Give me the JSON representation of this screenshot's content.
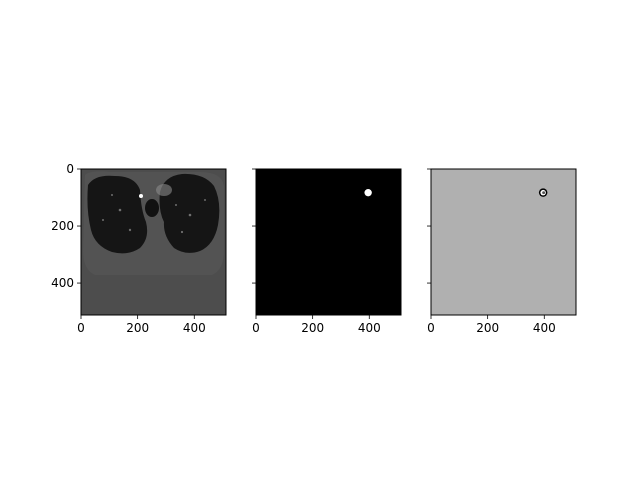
{
  "figure": {
    "background": "#ffffff",
    "panels": [
      {
        "name": "ct-slice",
        "image_kind": "grayscale chest CT slice (lungs)",
        "x_ticks": [
          0,
          200,
          400
        ],
        "y_ticks": [
          0,
          200,
          400
        ],
        "x_tick_labels": [
          "0",
          "200",
          "400"
        ],
        "y_tick_labels": [
          "0",
          "200",
          "400"
        ],
        "show_y_tick_labels": true,
        "extent": [
          0,
          512
        ]
      },
      {
        "name": "nodule-mask",
        "image_kind": "binary mask on black background with one white blob",
        "blob_center": [
          396,
          83
        ],
        "blob_radius": 13,
        "x_ticks": [
          0,
          200,
          400
        ],
        "y_ticks": [
          0,
          200,
          400
        ],
        "x_tick_labels": [
          "0",
          "200",
          "400"
        ],
        "y_tick_labels": [],
        "show_y_tick_labels": false,
        "extent": [
          0,
          512
        ]
      },
      {
        "name": "difference-map",
        "image_kind": "gray field with small ring marker",
        "blob_center": [
          396,
          83
        ],
        "blob_radius": 13,
        "x_ticks": [
          0,
          200,
          400
        ],
        "y_ticks": [
          0,
          200,
          400
        ],
        "x_tick_labels": [
          "0",
          "200",
          "400"
        ],
        "y_tick_labels": [],
        "show_y_tick_labels": false,
        "extent": [
          0,
          512
        ]
      }
    ],
    "colors": {
      "ct_body": "#4d4d4d",
      "ct_lung": "#151515",
      "mask_bg": "#000000",
      "mask_blob": "#ffffff",
      "diff_bg": "#b0b0b0",
      "diff_ring": "#000000",
      "diff_ring_light": "#ffffff"
    }
  }
}
